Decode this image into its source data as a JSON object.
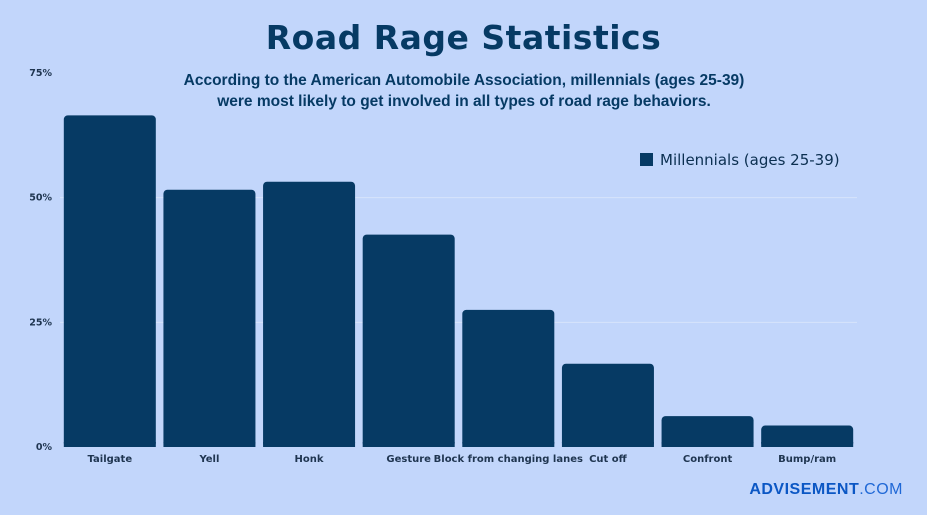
{
  "chart_data": {
    "type": "bar",
    "title": "Road Rage Statistics",
    "subtitle": "According to the American Automobile Association, millennials (ages 25-39) were most likely to get involved in all types of road rage behaviors.",
    "categories": [
      "Tailgate",
      "Yell",
      "Honk",
      "Gesture",
      "Block from changing lanes",
      "Cut off",
      "Confront",
      "Bump/ram"
    ],
    "series": [
      {
        "name": "Millennials (ages 25-39)",
        "values": [
          66.5,
          51.6,
          53.2,
          42.6,
          27.5,
          16.7,
          6.2,
          4.3
        ]
      }
    ],
    "yticks": [
      "0%",
      "25%",
      "50%",
      "75%"
    ],
    "ylim": [
      0,
      75
    ],
    "grid": true,
    "legend_position": "top-right",
    "colors": {
      "bar": "#063a64",
      "background": "#c2d6fb",
      "title": "#063a64"
    }
  },
  "brand": {
    "name": "ADVISEMENT",
    "suffix": ".COM"
  }
}
